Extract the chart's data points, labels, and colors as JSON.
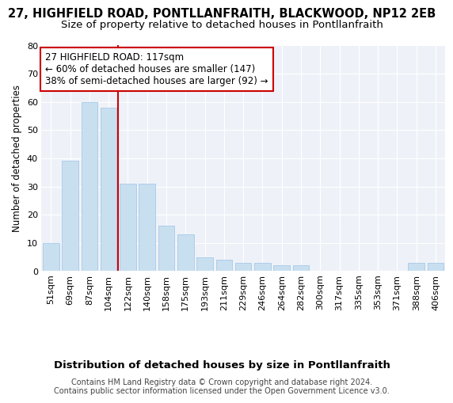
{
  "title": "27, HIGHFIELD ROAD, PONTLLANFRAITH, BLACKWOOD, NP12 2EB",
  "subtitle": "Size of property relative to detached houses in Pontllanfraith",
  "xlabel": "Distribution of detached houses by size in Pontllanfraith",
  "ylabel": "Number of detached properties",
  "categories": [
    "51sqm",
    "69sqm",
    "87sqm",
    "104sqm",
    "122sqm",
    "140sqm",
    "158sqm",
    "175sqm",
    "193sqm",
    "211sqm",
    "229sqm",
    "246sqm",
    "264sqm",
    "282sqm",
    "300sqm",
    "317sqm",
    "335sqm",
    "353sqm",
    "371sqm",
    "388sqm",
    "406sqm"
  ],
  "values": [
    10,
    39,
    60,
    58,
    31,
    31,
    16,
    13,
    5,
    4,
    3,
    3,
    2,
    2,
    0,
    0,
    0,
    0,
    0,
    3,
    3
  ],
  "bar_color": "#c8dff0",
  "bar_edge_color": "#a8c8e8",
  "vline_index": 4,
  "vline_color": "#cc0000",
  "annotation_line1": "27 HIGHFIELD ROAD: 117sqm",
  "annotation_line2": "← 60% of detached houses are smaller (147)",
  "annotation_line3": "38% of semi-detached houses are larger (92) →",
  "annotation_box_color": "#ffffff",
  "annotation_box_edge": "#cc0000",
  "ylim": [
    0,
    80
  ],
  "yticks": [
    0,
    10,
    20,
    30,
    40,
    50,
    60,
    70,
    80
  ],
  "footer": "Contains HM Land Registry data © Crown copyright and database right 2024.\nContains public sector information licensed under the Open Government Licence v3.0.",
  "bg_color": "#eef2f8",
  "grid_color": "#ffffff",
  "title_fontsize": 10.5,
  "subtitle_fontsize": 9.5,
  "xlabel_fontsize": 9.5,
  "ylabel_fontsize": 8.5,
  "tick_fontsize": 8,
  "annot_fontsize": 8.5,
  "footer_fontsize": 7
}
